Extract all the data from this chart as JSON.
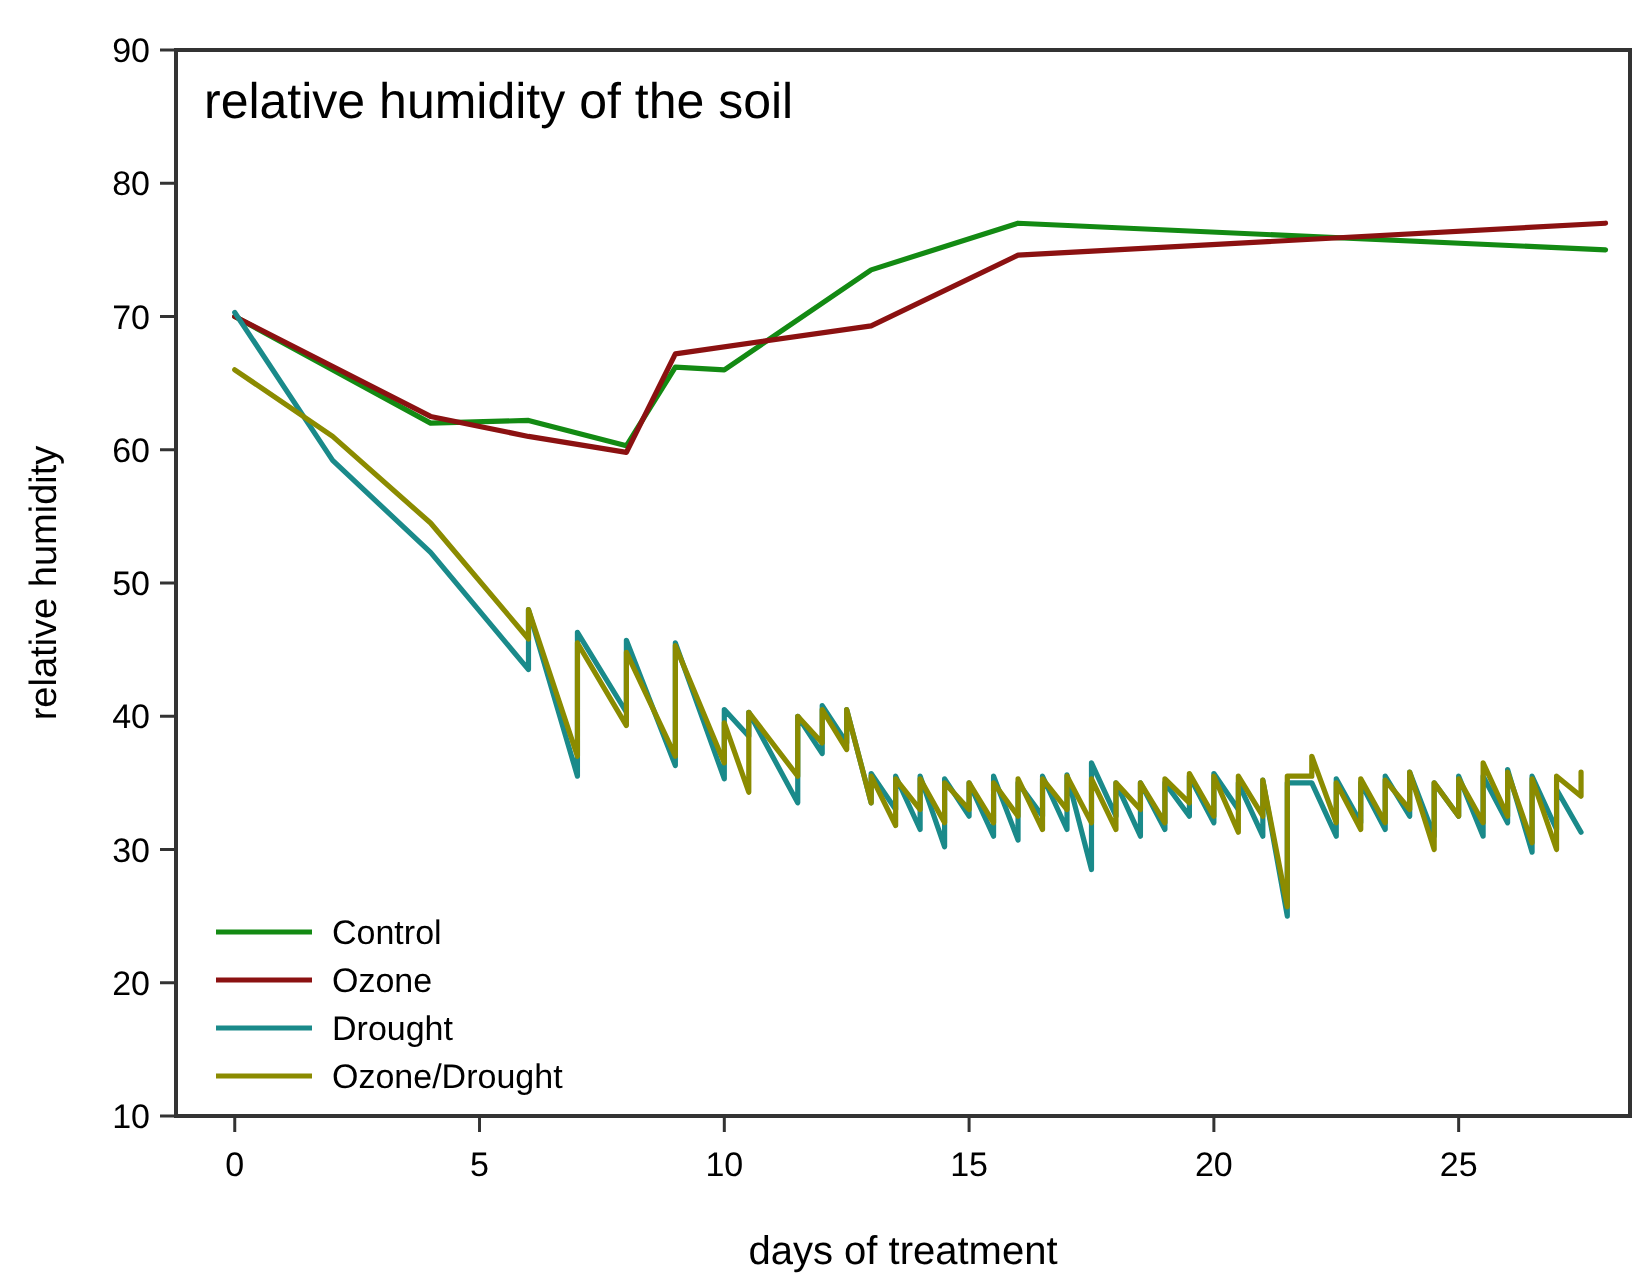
{
  "chart_data": {
    "type": "line",
    "title": "relative humidity of the soil",
    "xlabel": "days of treatment",
    "ylabel": "relative humidity",
    "xlim": [
      -1.2,
      28.5
    ],
    "xticks": [
      0,
      5,
      10,
      15,
      20,
      25
    ],
    "ylim": [
      10,
      90
    ],
    "yticks": [
      10,
      20,
      30,
      40,
      50,
      60,
      70,
      80,
      90
    ],
    "grid": false,
    "legend": "bottom left",
    "line_style": "solid",
    "series": [
      {
        "name": "Control",
        "color": "#138a13",
        "x": [
          0,
          4,
          6,
          8,
          9,
          10,
          13,
          16,
          28
        ],
        "values": [
          70,
          62,
          62.2,
          60.3,
          66.2,
          66,
          73.5,
          77,
          75
        ]
      },
      {
        "name": "Ozone",
        "color": "#8b1111",
        "x": [
          0,
          4,
          6,
          8,
          9,
          13,
          16,
          28
        ],
        "values": [
          70,
          62.5,
          61,
          59.8,
          67.2,
          69.3,
          74.6,
          77
        ]
      },
      {
        "name": "Drought",
        "color": "#1a8a8a",
        "x": [
          0,
          2,
          4,
          6,
          6,
          7,
          7,
          8,
          8,
          9,
          9,
          10,
          10,
          10.5,
          10.5,
          11.5,
          11.5,
          12,
          12,
          12.5,
          12.5,
          13,
          13,
          13.5,
          13.5,
          14,
          14,
          14.5,
          14.5,
          15,
          15,
          15.5,
          15.5,
          16,
          16,
          16.5,
          16.5,
          17,
          17,
          17.5,
          17.5,
          18,
          18,
          18.5,
          18.5,
          19,
          19,
          19.5,
          19.5,
          20,
          20,
          20.5,
          20.5,
          21,
          21,
          21.5,
          21.5,
          22,
          22.5,
          22.5,
          23,
          23,
          23.5,
          23.5,
          24,
          24,
          24.5,
          24.5,
          25,
          25,
          25.5,
          25.5,
          26,
          26,
          26.5,
          26.5,
          27,
          27,
          27.5
        ],
        "values": [
          70.3,
          59.2,
          52.3,
          43.5,
          48,
          35.5,
          46.3,
          40.3,
          45.7,
          36.3,
          45.5,
          35.3,
          40.5,
          38.5,
          40.3,
          33.5,
          40,
          37.2,
          40.8,
          38,
          40.5,
          33.5,
          35.7,
          33,
          35.5,
          31.5,
          35.5,
          30.2,
          35.3,
          32.5,
          35,
          31,
          35.5,
          30.7,
          35,
          32.5,
          35.5,
          31.5,
          35.6,
          28.5,
          36.5,
          32.5,
          35,
          31,
          35,
          31.5,
          35,
          32.5,
          35.5,
          32,
          35.7,
          33,
          35,
          31,
          35.2,
          25,
          35,
          35,
          31,
          35.3,
          32,
          35,
          31.5,
          35.5,
          32.5,
          35.8,
          31,
          35,
          32.5,
          35.5,
          31,
          35.5,
          32,
          36,
          29.8,
          35.5,
          31.5,
          34.5,
          31.3
        ]
      },
      {
        "name": "Ozone/Drought",
        "color": "#8b8b00",
        "x": [
          0,
          2,
          4,
          6,
          6,
          7,
          7,
          8,
          8,
          9,
          9,
          10,
          10,
          10.5,
          10.5,
          11.5,
          11.5,
          12,
          12,
          12.5,
          12.5,
          13,
          13,
          13.5,
          13.5,
          14,
          14,
          14.5,
          14.5,
          15,
          15,
          15.5,
          15.5,
          16,
          16,
          16.5,
          16.5,
          17,
          17,
          17.5,
          17.5,
          18,
          18,
          18.5,
          18.5,
          19,
          19,
          19.5,
          19.5,
          20,
          20,
          20.5,
          20.5,
          21,
          21,
          21.5,
          21.5,
          22,
          22,
          22.5,
          22.5,
          23,
          23,
          23.5,
          23.5,
          24,
          24,
          24.5,
          24.5,
          25,
          25,
          25.5,
          25.5,
          26,
          26,
          26.5,
          26.5,
          27,
          27,
          27.5,
          27.5
        ],
        "values": [
          66,
          61,
          54.5,
          45.8,
          48,
          37,
          45.5,
          39.3,
          44.8,
          37,
          45.3,
          36.5,
          39.5,
          34.3,
          40.3,
          35.5,
          40,
          38,
          40.5,
          37.5,
          40.5,
          33.5,
          35.5,
          31.8,
          35.3,
          33,
          35.3,
          32,
          35,
          33,
          35,
          32,
          35,
          32.5,
          35.3,
          31.5,
          35.3,
          33,
          35.5,
          32,
          35.3,
          31.5,
          35,
          33,
          35,
          32,
          35.3,
          33.5,
          35.7,
          32.5,
          35.5,
          31.3,
          35.5,
          32.5,
          35.2,
          25.7,
          35.5,
          35.5,
          37,
          32,
          35,
          31.5,
          35.3,
          32,
          35.2,
          33,
          35.8,
          30,
          35,
          32.5,
          35.3,
          32,
          36.5,
          32.5,
          35.8,
          30.5,
          35.3,
          30,
          35.5,
          34,
          35.8
        ]
      }
    ]
  }
}
